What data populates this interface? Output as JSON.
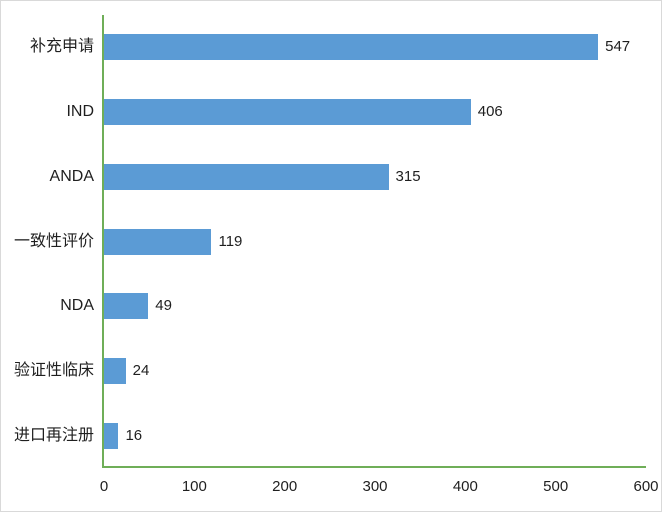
{
  "chart_data": {
    "type": "bar",
    "orientation": "horizontal",
    "title": "",
    "xlabel": "",
    "ylabel": "",
    "categories": [
      "补充申请",
      "IND",
      "ANDA",
      "一致性评价",
      "NDA",
      "验证性临床",
      "进口再注册"
    ],
    "values": [
      547,
      406,
      315,
      119,
      49,
      24,
      16
    ],
    "value_labels": [
      "547",
      "406",
      "315",
      "119",
      "49",
      "24",
      "16"
    ],
    "x_ticks": [
      "0",
      "100",
      "200",
      "300",
      "400",
      "500",
      "600"
    ],
    "xlim": [
      0,
      600
    ],
    "grid": false,
    "legend": false,
    "data_labels": true,
    "bar_color": "#5B9BD5",
    "axis_color": "#6FAE58",
    "text_color": "#1f1f1f",
    "background_color": "#FFFFFF",
    "border_color": "#D9D9D9"
  }
}
